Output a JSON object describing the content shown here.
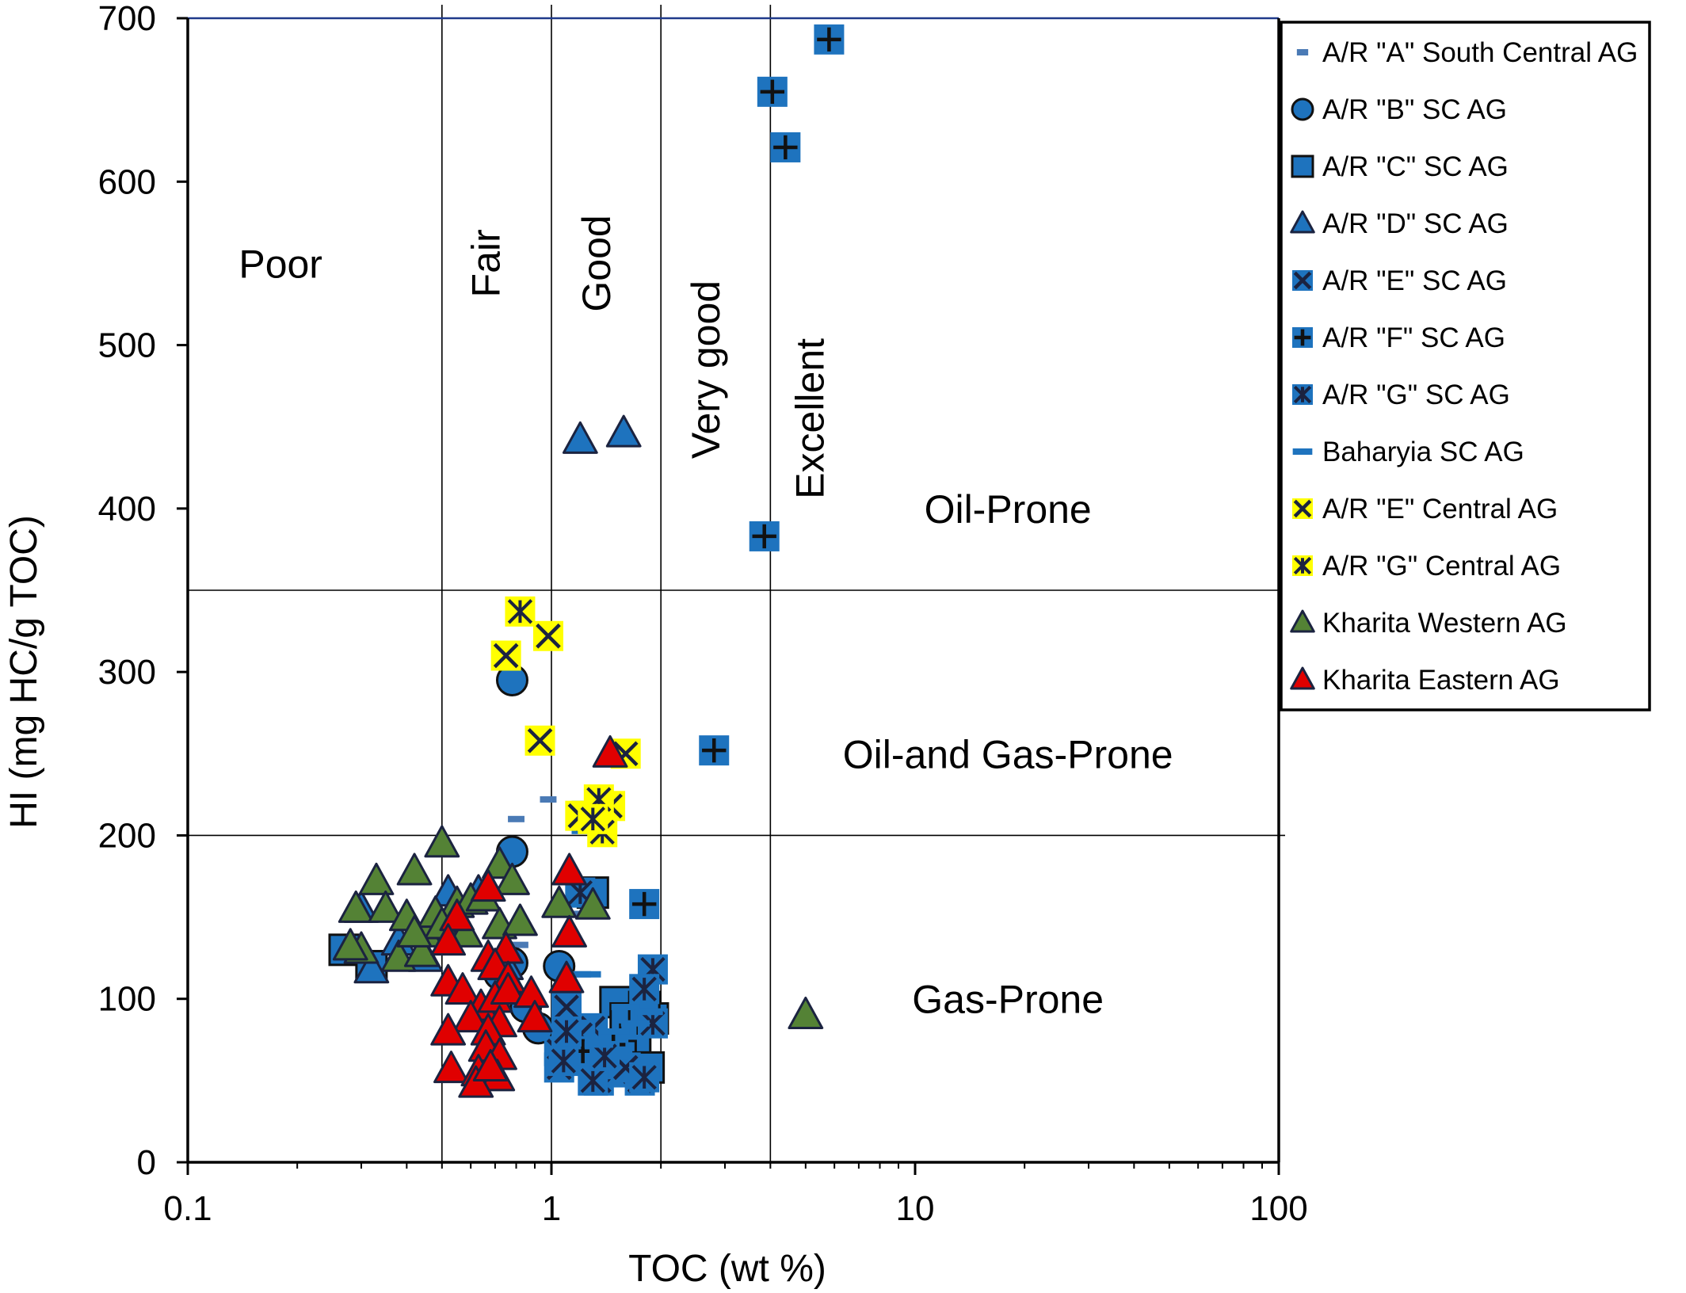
{
  "chart_data": {
    "type": "scatter",
    "title": "",
    "xlabel": "TOC (wt %)",
    "ylabel": "HI (mg HC/g TOC)",
    "x_scale": "log",
    "xlim": [
      0.1,
      100
    ],
    "ylim": [
      0,
      700
    ],
    "x_ticks": [
      "0.1",
      "1",
      "10",
      "100"
    ],
    "y_ticks": [
      "0",
      "100",
      "200",
      "300",
      "400",
      "500",
      "600",
      "700"
    ],
    "grid": false,
    "legend_position": "right",
    "reference_lines": {
      "toc_boundaries": [
        0.5,
        1,
        2,
        4
      ],
      "hi_boundaries": [
        200,
        350
      ]
    },
    "richness_labels": [
      {
        "text": "Poor",
        "x": 0.18,
        "y": 550,
        "vertical": false
      },
      {
        "text": "Fair",
        "x": 0.72,
        "y": 550,
        "vertical": true
      },
      {
        "text": "Good",
        "x": 1.45,
        "y": 550,
        "vertical": true
      },
      {
        "text": "Very good",
        "x": 2.9,
        "y": 485,
        "vertical": true
      },
      {
        "text": "Excellent",
        "x": 5.6,
        "y": 455,
        "vertical": true
      }
    ],
    "zone_labels": [
      {
        "text": "Oil-Prone",
        "x": 18,
        "y": 400
      },
      {
        "text": "Oil-and Gas-Prone",
        "x": 18,
        "y": 250
      },
      {
        "text": "Gas-Prone",
        "x": 18,
        "y": 100
      }
    ],
    "series": [
      {
        "name": "A/R \"A\" South Central AG",
        "marker": "smalldash",
        "fill": "#4a7ab5",
        "points": [
          [
            0.8,
            210
          ],
          [
            0.98,
            222
          ],
          [
            0.82,
            133
          ],
          [
            1.15,
            152
          ],
          [
            1.22,
            115
          ],
          [
            0.72,
            118
          ],
          [
            0.9,
            100
          ]
        ]
      },
      {
        "name": "A/R \"B\" SC AG",
        "marker": "circle",
        "fill": "#1e73be",
        "points": [
          [
            0.78,
            295
          ],
          [
            0.78,
            190
          ],
          [
            0.78,
            122
          ],
          [
            1.05,
            120
          ],
          [
            0.72,
            115
          ],
          [
            0.92,
            82
          ],
          [
            0.85,
            95
          ]
        ]
      },
      {
        "name": "A/R \"C\" SC AG",
        "marker": "square",
        "fill": "#1e73be",
        "points": [
          [
            0.27,
            130
          ],
          [
            0.32,
            120
          ],
          [
            1.3,
            165
          ],
          [
            1.5,
            98
          ],
          [
            1.6,
            88
          ],
          [
            1.7,
            75
          ],
          [
            1.55,
            65
          ],
          [
            1.85,
            58
          ],
          [
            1.45,
            70
          ],
          [
            1.9,
            88
          ],
          [
            1.8,
            95
          ]
        ]
      },
      {
        "name": "A/R \"D\" SC AG",
        "marker": "triangle",
        "fill": "#1e73be",
        "points": [
          [
            1.2,
            442
          ],
          [
            1.58,
            446
          ],
          [
            0.3,
            155
          ],
          [
            0.38,
            135
          ],
          [
            0.32,
            118
          ],
          [
            0.52,
            165
          ],
          [
            0.75,
            120
          ],
          [
            0.45,
            125
          ],
          [
            0.63,
            165
          ]
        ]
      },
      {
        "name": "A/R \"E\" SC AG",
        "marker": "squarex",
        "fill": "#1e73be",
        "points": [
          [
            1.25,
            212
          ],
          [
            1.3,
            82
          ],
          [
            1.05,
            68
          ],
          [
            1.35,
            50
          ],
          [
            1.5,
            55
          ],
          [
            1.75,
            50
          ],
          [
            1.2,
            78
          ],
          [
            1.45,
            60
          ],
          [
            1.1,
            95
          ],
          [
            1.6,
            58
          ],
          [
            1.05,
            58
          ]
        ]
      },
      {
        "name": "A/R \"F\" SC AG",
        "marker": "squareplus",
        "fill": "#1e73be",
        "points": [
          [
            5.8,
            687
          ],
          [
            4.05,
            655
          ],
          [
            4.4,
            621
          ],
          [
            3.85,
            383
          ],
          [
            2.8,
            252
          ],
          [
            1.8,
            158
          ],
          [
            1.22,
            68
          ],
          [
            1.48,
            72
          ]
        ]
      },
      {
        "name": "A/R \"G\" SC AG",
        "marker": "squarestar",
        "fill": "#1e73be",
        "points": [
          [
            1.2,
            165
          ],
          [
            1.9,
            118
          ],
          [
            1.8,
            106
          ],
          [
            1.9,
            85
          ],
          [
            1.1,
            80
          ],
          [
            1.3,
            50
          ],
          [
            1.8,
            52
          ],
          [
            1.25,
            210
          ],
          [
            1.4,
            65
          ],
          [
            1.08,
            62
          ]
        ]
      },
      {
        "name": "Baharyia SC AG",
        "marker": "dash",
        "fill": "#1e73be",
        "points": [
          [
            1.25,
            115
          ],
          [
            1.6,
            95
          ],
          [
            1.7,
            85
          ],
          [
            1.5,
            80
          ],
          [
            1.35,
            72
          ],
          [
            1.85,
            92
          ]
        ]
      },
      {
        "name": "A/R \"E\" Central AG",
        "marker": "x",
        "fill": "#ffff00",
        "points": [
          [
            0.75,
            310
          ],
          [
            0.98,
            322
          ],
          [
            0.93,
            258
          ],
          [
            1.6,
            250
          ],
          [
            1.2,
            212
          ],
          [
            1.45,
            218
          ]
        ]
      },
      {
        "name": "A/R \"G\" Central AG",
        "marker": "squarestar",
        "fill": "#ffff00",
        "points": [
          [
            0.82,
            337
          ],
          [
            1.35,
            222
          ],
          [
            1.38,
            202
          ],
          [
            1.3,
            210
          ]
        ]
      },
      {
        "name": "Kharita Western AG",
        "marker": "triangle",
        "fill": "#548235",
        "points": [
          [
            0.5,
            195
          ],
          [
            0.33,
            172
          ],
          [
            0.42,
            178
          ],
          [
            0.29,
            155
          ],
          [
            0.35,
            155
          ],
          [
            0.4,
            150
          ],
          [
            0.45,
            140
          ],
          [
            0.48,
            152
          ],
          [
            0.55,
            158
          ],
          [
            0.6,
            160
          ],
          [
            0.65,
            162
          ],
          [
            0.72,
            182
          ],
          [
            0.78,
            172
          ],
          [
            0.72,
            145
          ],
          [
            0.82,
            147
          ],
          [
            0.3,
            130
          ],
          [
            0.38,
            125
          ],
          [
            0.44,
            128
          ],
          [
            0.28,
            132
          ],
          [
            0.5,
            145
          ],
          [
            0.58,
            140
          ],
          [
            0.42,
            140
          ],
          [
            5.0,
            90
          ],
          [
            1.05,
            158
          ],
          [
            1.3,
            157
          ]
        ]
      },
      {
        "name": "Kharita Eastern AG",
        "marker": "triangle",
        "fill": "#e00000",
        "points": [
          [
            1.45,
            250
          ],
          [
            0.67,
            168
          ],
          [
            1.12,
            178
          ],
          [
            0.55,
            150
          ],
          [
            1.12,
            140
          ],
          [
            0.52,
            135
          ],
          [
            0.75,
            130
          ],
          [
            0.67,
            125
          ],
          [
            0.7,
            120
          ],
          [
            0.76,
            112
          ],
          [
            0.52,
            110
          ],
          [
            0.57,
            105
          ],
          [
            0.64,
            95
          ],
          [
            0.7,
            100
          ],
          [
            0.76,
            105
          ],
          [
            0.88,
            103
          ],
          [
            1.1,
            112
          ],
          [
            0.6,
            88
          ],
          [
            0.72,
            85
          ],
          [
            0.67,
            80
          ],
          [
            0.9,
            88
          ],
          [
            0.52,
            80
          ],
          [
            0.66,
            70
          ],
          [
            0.72,
            65
          ],
          [
            0.53,
            57
          ],
          [
            0.63,
            55
          ],
          [
            0.71,
            52
          ],
          [
            0.62,
            48
          ],
          [
            0.68,
            58
          ]
        ]
      }
    ]
  }
}
